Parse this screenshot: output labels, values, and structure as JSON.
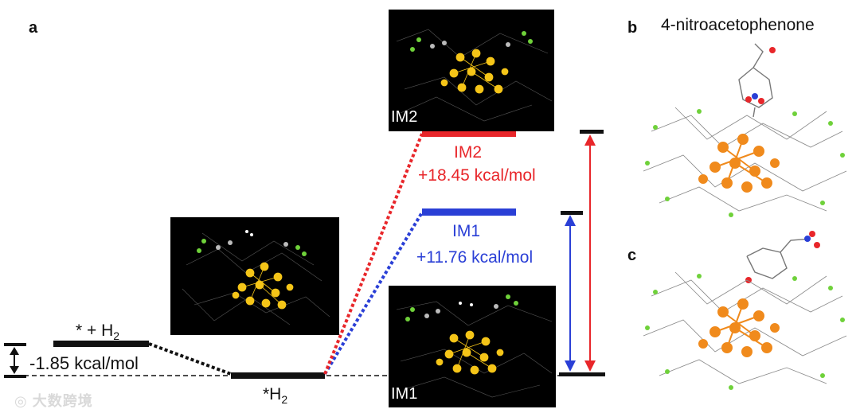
{
  "panels": {
    "a": "a",
    "b": "b",
    "c": "c"
  },
  "molecule_title": "4-nitroacetophenone",
  "states": {
    "initial": {
      "label_main": "* + H",
      "label_sub": "2",
      "energy": "-1.85 kcal/mol"
    },
    "adsorbed": {
      "label_main": "*H",
      "label_sub": "2"
    },
    "im1": {
      "name": "IM1",
      "energy": "+11.76 kcal/mol",
      "image_tag": "IM1"
    },
    "im2": {
      "name": "IM2",
      "energy": "+18.45 kcal/mol",
      "image_tag": "IM2"
    }
  },
  "colors": {
    "im1": "#2a3fd6",
    "im2": "#e8262a",
    "gold": "#f5c518",
    "orange": "#f08a1c",
    "halogen": "#6fd13a"
  },
  "watermark": "大数跨境"
}
